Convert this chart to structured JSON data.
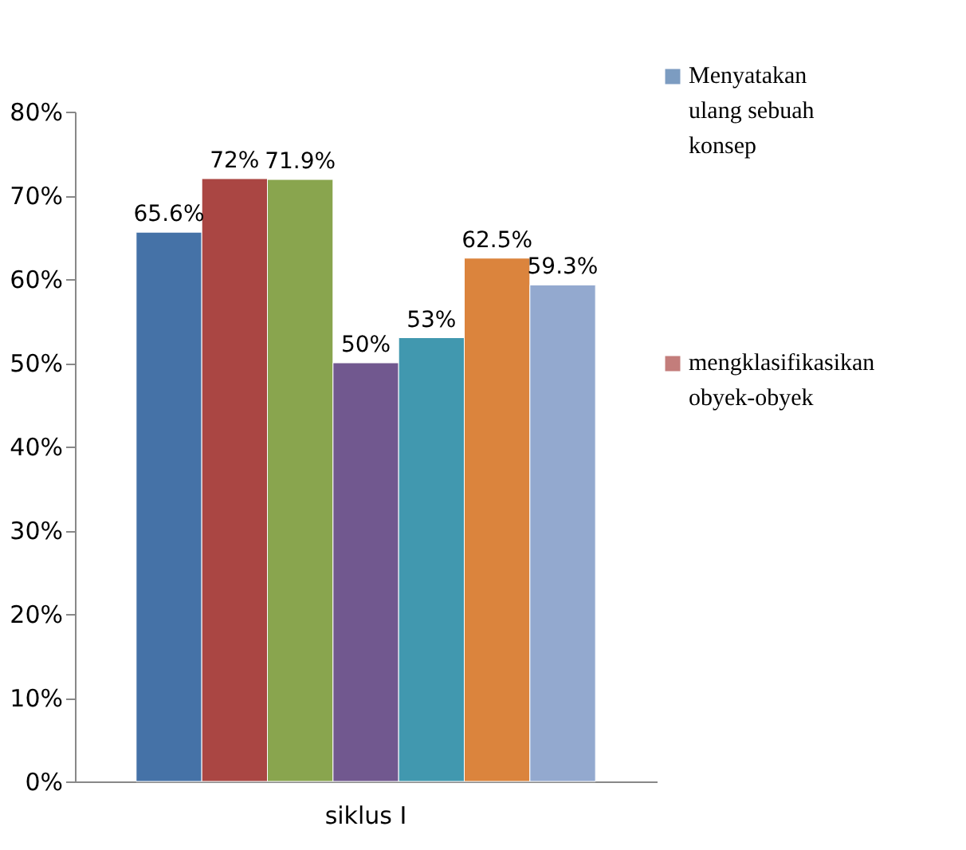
{
  "chart_data": {
    "type": "bar",
    "categories": [
      "siklus I"
    ],
    "series": [
      {
        "name": "Menyatakan ulang sebuah konsep",
        "color": "#4572a7",
        "values": [
          65.6
        ],
        "value_labels": [
          "65.6%"
        ]
      },
      {
        "name": "mengklasifikasikan obyek-obyek",
        "color": "#aa4643",
        "values": [
          72
        ],
        "value_labels": [
          "72%"
        ]
      },
      {
        "color": "#89a54e",
        "values": [
          71.9
        ],
        "value_labels": [
          "71.9%"
        ]
      },
      {
        "color": "#71588f",
        "values": [
          50
        ],
        "value_labels": [
          "50%"
        ]
      },
      {
        "color": "#4198af",
        "values": [
          53
        ],
        "value_labels": [
          "53%"
        ]
      },
      {
        "color": "#db843d",
        "values": [
          62.5
        ],
        "value_labels": [
          "62.5%"
        ]
      },
      {
        "color": "#93a9cf",
        "values": [
          59.3
        ],
        "value_labels": [
          "59.3%"
        ]
      }
    ],
    "ylim": [
      0,
      80
    ],
    "yticks": [
      {
        "value": 0,
        "label": "0%"
      },
      {
        "value": 10,
        "label": "10%"
      },
      {
        "value": 20,
        "label": "20%"
      },
      {
        "value": 30,
        "label": "30%"
      },
      {
        "value": 40,
        "label": "40%"
      },
      {
        "value": 50,
        "label": "50%"
      },
      {
        "value": 60,
        "label": "60%"
      },
      {
        "value": 70,
        "label": "70%"
      },
      {
        "value": 80,
        "label": "80%"
      }
    ],
    "grid": false,
    "legend": "right"
  }
}
